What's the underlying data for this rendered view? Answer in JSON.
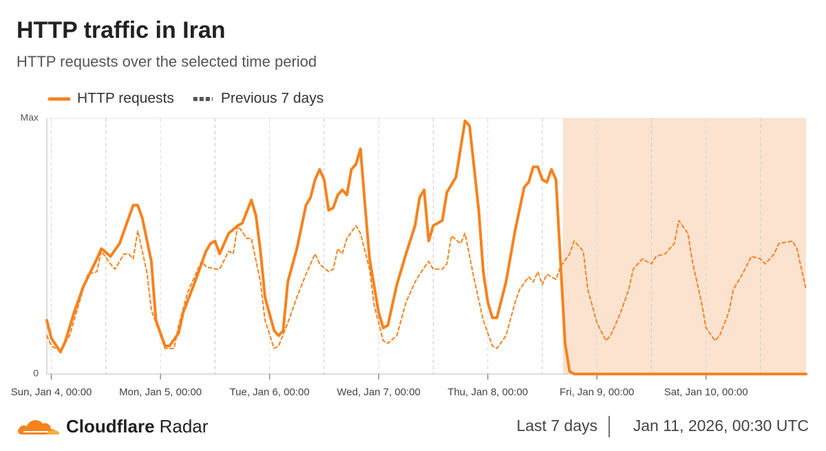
{
  "chart_data": {
    "type": "line",
    "title": "HTTP traffic in Iran",
    "subtitle": "HTTP requests over the selected time period",
    "xlim": [
      -1,
      166
    ],
    "ylim": [
      0,
      1
    ],
    "xticks": [
      {
        "value": 0,
        "label": "Sun, Jan 4, 00:00"
      },
      {
        "value": 24,
        "label": "Mon, Jan 5, 00:00"
      },
      {
        "value": 48,
        "label": "Tue, Jan 6, 00:00"
      },
      {
        "value": 72,
        "label": "Wed, Jan 7, 00:00"
      },
      {
        "value": 96,
        "label": "Thu, Jan 8, 00:00"
      },
      {
        "value": 120,
        "label": "Fri, Jan 9, 00:00"
      },
      {
        "value": 144,
        "label": "Sat, Jan 10, 00:00"
      }
    ],
    "xminorticks": [
      12,
      36,
      60,
      84,
      108,
      132,
      156
    ],
    "yticks": [
      0,
      {
        "value": 1,
        "label": "Max"
      }
    ],
    "grid": true,
    "highlight": {
      "range": [
        112.5,
        166
      ],
      "color": "#fbe3d0"
    },
    "series": [
      {
        "name": "HTTP requests",
        "color": "#f6821f",
        "dash": false,
        "x": [
          -1,
          0,
          2,
          3,
          5,
          7,
          10,
          11,
          13,
          15,
          17,
          18,
          19,
          20,
          22,
          23,
          25,
          26,
          28,
          29,
          32,
          34,
          35,
          36,
          37,
          39,
          41,
          42,
          44,
          45,
          46,
          47,
          49,
          50,
          51,
          52,
          54,
          56,
          57,
          58,
          59,
          60,
          61,
          62,
          63,
          64,
          65,
          66,
          67,
          68,
          69,
          70,
          72,
          73,
          74,
          76,
          78,
          80,
          81,
          82,
          83,
          84,
          86,
          87,
          89,
          90,
          91,
          92,
          94,
          95,
          96,
          97,
          98,
          100,
          102,
          104,
          105,
          106,
          107,
          108,
          109,
          110,
          111,
          112,
          113,
          114,
          115,
          166
        ],
        "values": [
          0.21,
          0.14,
          0.086,
          0.124,
          0.24,
          0.34,
          0.45,
          0.49,
          0.46,
          0.51,
          0.61,
          0.66,
          0.66,
          0.61,
          0.44,
          0.21,
          0.11,
          0.11,
          0.16,
          0.24,
          0.38,
          0.48,
          0.51,
          0.52,
          0.47,
          0.55,
          0.58,
          0.59,
          0.68,
          0.62,
          0.48,
          0.3,
          0.17,
          0.15,
          0.17,
          0.36,
          0.49,
          0.66,
          0.69,
          0.76,
          0.8,
          0.76,
          0.64,
          0.65,
          0.7,
          0.72,
          0.7,
          0.8,
          0.82,
          0.88,
          0.66,
          0.45,
          0.24,
          0.18,
          0.19,
          0.35,
          0.47,
          0.58,
          0.69,
          0.72,
          0.52,
          0.58,
          0.6,
          0.71,
          0.77,
          0.88,
          0.99,
          0.97,
          0.64,
          0.4,
          0.28,
          0.22,
          0.22,
          0.36,
          0.56,
          0.73,
          0.75,
          0.81,
          0.81,
          0.76,
          0.75,
          0.8,
          0.76,
          0.44,
          0.12,
          0.01,
          0,
          0
        ]
      },
      {
        "name": "Previous 7 days",
        "color": "#f6821f",
        "dash": true,
        "x": [
          -1,
          0,
          2,
          4,
          6,
          8,
          10,
          11,
          13,
          14,
          16,
          17,
          18,
          19,
          21,
          22,
          24,
          25,
          27,
          28,
          30,
          33,
          34,
          36,
          37,
          39,
          40,
          41,
          43,
          44,
          46,
          47,
          49,
          50,
          52,
          54,
          56,
          58,
          59,
          61,
          62,
          63,
          64,
          65,
          67,
          68,
          70,
          71,
          73,
          74,
          76,
          78,
          80,
          81,
          83,
          84,
          86,
          87,
          88,
          90,
          91,
          93,
          95,
          97,
          98,
          100,
          102,
          103,
          105,
          106,
          107,
          108,
          109,
          111,
          112,
          114,
          115,
          117,
          118,
          120,
          122,
          123,
          125,
          127,
          128,
          130,
          132,
          133,
          135,
          137,
          138,
          140,
          141,
          143,
          144,
          146,
          147,
          149,
          150,
          152,
          154,
          156,
          157,
          159,
          160,
          163,
          164,
          166
        ],
        "values": [
          0.15,
          0.11,
          0.09,
          0.15,
          0.27,
          0.39,
          0.4,
          0.48,
          0.43,
          0.41,
          0.47,
          0.47,
          0.45,
          0.56,
          0.4,
          0.25,
          0.15,
          0.1,
          0.1,
          0.19,
          0.32,
          0.44,
          0.42,
          0.41,
          0.41,
          0.48,
          0.47,
          0.58,
          0.53,
          0.53,
          0.36,
          0.21,
          0.1,
          0.11,
          0.2,
          0.3,
          0.39,
          0.47,
          0.43,
          0.4,
          0.41,
          0.49,
          0.47,
          0.53,
          0.58,
          0.55,
          0.41,
          0.27,
          0.13,
          0.12,
          0.15,
          0.28,
          0.36,
          0.39,
          0.44,
          0.41,
          0.41,
          0.43,
          0.54,
          0.51,
          0.55,
          0.37,
          0.21,
          0.11,
          0.1,
          0.15,
          0.28,
          0.33,
          0.38,
          0.36,
          0.4,
          0.35,
          0.39,
          0.37,
          0.42,
          0.47,
          0.52,
          0.48,
          0.33,
          0.2,
          0.13,
          0.15,
          0.23,
          0.33,
          0.41,
          0.45,
          0.43,
          0.46,
          0.47,
          0.51,
          0.6,
          0.55,
          0.44,
          0.28,
          0.18,
          0.13,
          0.15,
          0.24,
          0.33,
          0.39,
          0.46,
          0.45,
          0.43,
          0.47,
          0.51,
          0.52,
          0.49,
          0.33
        ]
      }
    ]
  },
  "footer": {
    "brand": "Cloudflare",
    "product": "Radar",
    "range": "Last 7 days",
    "timestamp": "Jan 11, 2026, 00:30 UTC"
  }
}
